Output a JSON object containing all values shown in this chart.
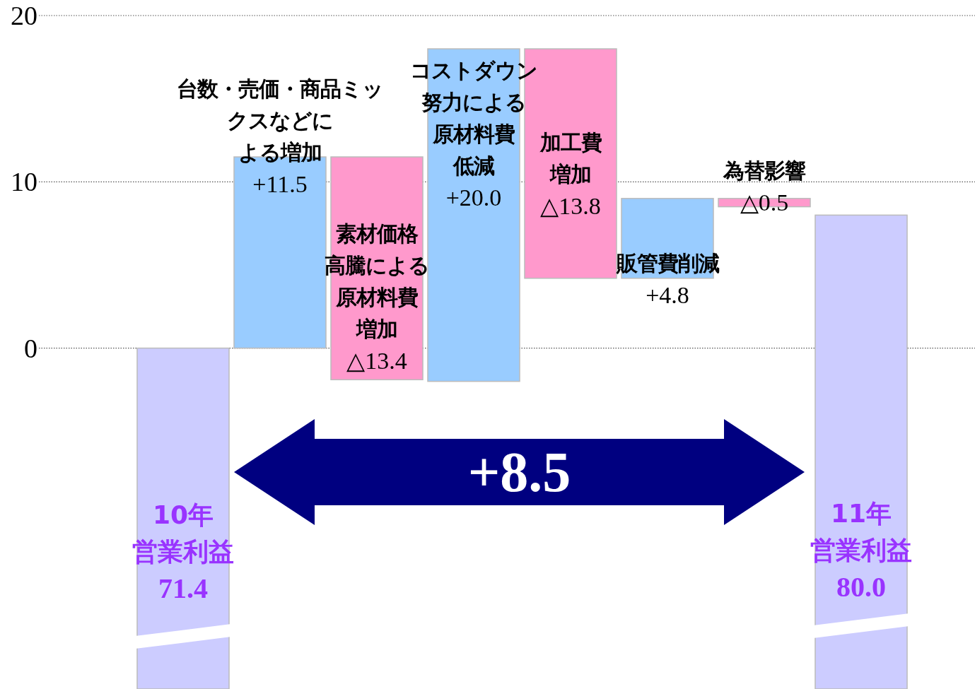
{
  "chart_data": {
    "type": "bar",
    "categories": [
      "10年営業利益",
      "台数・売価・商品ミックスなどによる増加",
      "素材価格高騰による原材料費増加",
      "コストダウン努力による原材料費低減",
      "加工費増加",
      "販管費削減",
      "為替影響",
      "11年営業利益"
    ],
    "values": [
      20.5,
      11.5,
      -13.4,
      20.0,
      -13.8,
      4.8,
      -0.5,
      28.5
    ],
    "base": [
      -20.5,
      0,
      11.5,
      -2.0,
      18.0,
      4.2,
      9.0,
      -20.5
    ],
    "colors": [
      "#ccccff",
      "#99ccff",
      "#ff99cc",
      "#99ccff",
      "#ff99cc",
      "#99ccff",
      "#ff99cc",
      "#ccccff"
    ],
    "value_labels": [
      null,
      "+11.5",
      "△13.4",
      "+20.0",
      "△13.8",
      "+4.8",
      "△0.5",
      null
    ],
    "ylim": [
      -20.5,
      20
    ],
    "yticks": [
      0,
      10,
      20
    ],
    "grid": "y",
    "annotations": [
      "71.4",
      "80.0",
      "+8.5"
    ]
  }
}
